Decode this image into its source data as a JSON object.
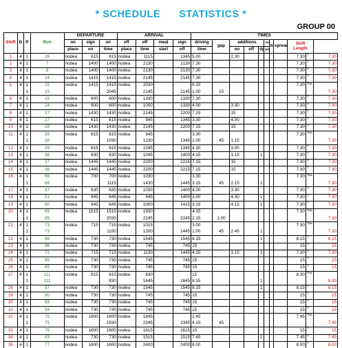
{
  "title": "* SCHEDULE      STATISTICS *",
  "group": "GROUP 00",
  "headers": {
    "shift": "Shift",
    "d": "D",
    "p": "P",
    "run": "Run",
    "departure": "DEPARTURE",
    "arrival": "ARRIVAL",
    "times": "TIMES",
    "on_place": [
      "on",
      "place"
    ],
    "sign_on": [
      "sign",
      "on"
    ],
    "on_time": [
      "on",
      "time"
    ],
    "off_place": [
      "off",
      "place"
    ],
    "off_time": [
      "off",
      "time"
    ],
    "meal_start": [
      "meal",
      "start"
    ],
    "sign_off": [
      "sign",
      "off"
    ],
    "driving_time": [
      "driving",
      "time"
    ],
    "gap": "gap",
    "additions": "additions",
    "add_on": "on",
    "add_off": "off",
    "dpt": "dpt",
    "ma": "mai",
    "pm": "pm",
    "brk": "brk.",
    "spread": "spread",
    "shift_length": [
      "Shift",
      "Length"
    ]
  },
  "rows": [
    {
      "shift": "1",
      "d": "4",
      "p": "1",
      "run": "26",
      "onp": "nodea",
      "son": "615",
      "ont": "615",
      "offp": "nodea",
      "offt": "1115",
      "meal": "",
      "soff": "1345",
      "drv": "5.00",
      "gap": "",
      "aon": "2.30",
      "aoff": "",
      "dpt": "",
      "ma": "",
      "pm": "",
      "brk": "",
      "spr": "7.30",
      "tag": "†",
      "len": "7.30"
    },
    {
      "shift": "2",
      "d": "4",
      "p": "1",
      "run": "7",
      "onp": "nodea",
      "son": "1400",
      "ont": "1400",
      "offp": "nodea",
      "offt": "2130",
      "meal": "",
      "soff": "2130",
      "drv": "7.30",
      "gap": "",
      "aon": "",
      "aoff": "",
      "dpt": "",
      "ma": "",
      "pm": "",
      "brk": "",
      "spr": "7.30",
      "tag": "†",
      "len": "7.30"
    },
    {
      "shift": "3",
      "d": "4",
      "p": "1",
      "run": "8",
      "onp": "nodea",
      "son": "1400",
      "ont": "1400",
      "offp": "nodea",
      "offt": "2130",
      "meal": "",
      "soff": "2130",
      "drv": "7.30",
      "gap": "",
      "aon": "",
      "aoff": "",
      "dpt": "",
      "ma": "",
      "pm": "",
      "brk": "",
      "spr": "7.30",
      "tag": "†",
      "len": "7.30"
    },
    {
      "shift": "4",
      "d": "4",
      "p": "1",
      "run": "14",
      "onp": "nodea",
      "son": "1415",
      "ont": "1415",
      "offp": "nodea",
      "offt": "2145",
      "meal": "",
      "soff": "2145",
      "drv": "7.30",
      "gap": "",
      "aon": "",
      "aoff": "",
      "dpt": "",
      "ma": "",
      "pm": "",
      "brk": "",
      "spr": "7.30",
      "tag": "†",
      "len": "7.30"
    },
    {
      "shift": "5",
      "d": "4",
      "p": "1",
      "run": "15",
      "onp": "nodea",
      "son": "1415",
      "ont": "1415",
      "offp": "nodea",
      "offt": "2030",
      "meal": "",
      "soff": "",
      "drv": "6.15",
      "gap": "",
      "aon": "",
      "aoff": "",
      "dpt": "",
      "ma": "",
      "pm": "",
      "brk": "",
      "spr": "7.30",
      "tag": "Tue",
      "len": ""
    },
    {
      "shift": "",
      "d": "",
      "p": "1",
      "run": "15",
      "onp": "",
      "son": "",
      "ont": "2045",
      "offp": "",
      "offt": "2145",
      "meal": "",
      "soff": "2145",
      "drv": "1.00",
      "gap": "15",
      "aon": "",
      "aoff": "",
      "dpt": "",
      "ma": "",
      "pm": "",
      "brk": "",
      "spr": "",
      "tag": "",
      "len": "7.30"
    },
    {
      "shift": "6",
      "d": "4",
      "p": "1",
      "run": "15",
      "onp": "nodea",
      "son": "600",
      "ont": "600",
      "offp": "nodea",
      "offt": "1330",
      "meal": "",
      "soff": "1330",
      "drv": "7.30",
      "gap": "",
      "aon": "",
      "aoff": "",
      "dpt": "",
      "ma": "",
      "pm": "",
      "brk": "",
      "spr": "7.30",
      "tag": "†",
      "len": "7.30"
    },
    {
      "shift": "7",
      "d": "4",
      "p": "1",
      "run": "14",
      "onp": "nodea",
      "son": "600",
      "ont": "600",
      "offp": "nodea",
      "offt": "1000",
      "meal": "",
      "soff": "1330",
      "drv": "4.00",
      "gap": "",
      "aon": "3.30",
      "aoff": "",
      "dpt": "",
      "ma": "",
      "pm": "",
      "brk": "",
      "spr": "7.30",
      "tag": "†",
      "len": "7.30"
    },
    {
      "shift": "8",
      "d": "4",
      "p": "1",
      "run": "27",
      "onp": "nodea",
      "son": "1430",
      "ont": "1430",
      "offp": "nodea",
      "offt": "2145",
      "meal": "",
      "soff": "2200",
      "drv": "7.15",
      "gap": "",
      "aon": "15",
      "aoff": "",
      "dpt": "",
      "ma": "",
      "pm": "",
      "brk": "",
      "spr": "7.30",
      "tag": "†",
      "len": "7.30"
    },
    {
      "shift": "9",
      "d": "4",
      "p": "1",
      "run": "27",
      "onp": "nodea",
      "son": "615",
      "ont": "615",
      "offp": "nodea",
      "offt": "945",
      "meal": "",
      "soff": "1345",
      "drv": "3.30",
      "gap": "",
      "aon": "4.00",
      "aoff": "",
      "dpt": "",
      "ma": "",
      "pm": "",
      "brk": "",
      "spr": "7.30",
      "tag": "†",
      "len": "7.30"
    },
    {
      "shift": "10",
      "d": "4",
      "p": "1",
      "run": "28",
      "onp": "nodea",
      "son": "1430",
      "ont": "1430",
      "offp": "nodea",
      "offt": "2145",
      "meal": "",
      "soff": "2200",
      "drv": "7.15",
      "gap": "",
      "aon": "15",
      "aoff": "",
      "dpt": "",
      "ma": "",
      "pm": "",
      "brk": "",
      "spr": "7.30",
      "tag": "†",
      "len": "7.30"
    },
    {
      "shift": "11",
      "d": "4",
      "p": "1",
      "run": "26",
      "onp": "nodea",
      "son": "615",
      "ont": "615",
      "offp": "nodea",
      "offt": "945",
      "meal": "",
      "soff": "",
      "drv": "3.30",
      "gap": "",
      "aon": "",
      "aoff": "",
      "dpt": "",
      "ma": "",
      "pm": "",
      "brk": "",
      "spr": "7.30",
      "tag": "Tue",
      "len": ""
    },
    {
      "shift": "",
      "d": "",
      "p": "1",
      "run": "26",
      "onp": "",
      "son": "",
      "ont": "1030",
      "offp": "",
      "offt": "1230",
      "meal": "",
      "soff": "1345",
      "drv": "2.00",
      "gap": "45",
      "aon": "1.15",
      "aoff": "",
      "dpt": "",
      "ma": "",
      "pm": "",
      "brk": "",
      "spr": "",
      "tag": "",
      "len": "7.30"
    },
    {
      "shift": "12",
      "d": "4",
      "p": "1",
      "run": "29",
      "onp": "nodea",
      "son": "615",
      "ont": "615",
      "offp": "nodea",
      "offt": "1045",
      "meal": "",
      "soff": "1345",
      "drv": "4.30",
      "gap": "",
      "aon": "3.00",
      "aoff": "",
      "dpt": "",
      "ma": "",
      "pm": "",
      "brk": "",
      "spr": "7.30",
      "tag": "†",
      "len": "7.30"
    },
    {
      "shift": "13",
      "d": "4",
      "p": "1",
      "run": "38",
      "onp": "nodea",
      "son": "630",
      "ont": "630",
      "offp": "nodea",
      "offt": "1045",
      "meal": "",
      "soff": "1400",
      "drv": "4.15",
      "gap": "",
      "aon": "3.15",
      "aoff": "",
      "dpt": "1",
      "ma": "",
      "pm": "",
      "brk": "",
      "spr": "7.30",
      "tag": "†",
      "len": "7.30"
    },
    {
      "shift": "14",
      "d": "4",
      "p": "1",
      "run": "37",
      "onp": "nodea",
      "son": "1445",
      "ont": "1445",
      "offp": "nodea",
      "offt": "2200",
      "meal": "",
      "soff": "2215",
      "drv": "7.15",
      "gap": "",
      "aon": "15",
      "aoff": "",
      "dpt": "",
      "ma": "",
      "pm": "",
      "brk": "",
      "spr": "7.30",
      "tag": "†",
      "len": "7.30"
    },
    {
      "shift": "15",
      "d": "4",
      "p": "1",
      "run": "38",
      "onp": "nodea",
      "son": "1445",
      "ont": "1445",
      "offp": "nodea",
      "offt": "2200",
      "meal": "",
      "soff": "2215",
      "drv": "7.15",
      "gap": "",
      "aon": "15",
      "aoff": "",
      "dpt": "",
      "ma": "",
      "pm": "",
      "brk": "",
      "spr": "7.30",
      "tag": "†",
      "len": "7.30"
    },
    {
      "shift": "16",
      "d": "4",
      "p": "1",
      "run": "66",
      "onp": "nodea",
      "son": "700",
      "ont": "700",
      "offp": "nodea",
      "offt": "1030",
      "meal": "",
      "soff": "",
      "drv": "3.30",
      "gap": "",
      "aon": "",
      "aoff": "",
      "dpt": "",
      "ma": "",
      "pm": "",
      "brk": "",
      "spr": "7.30",
      "tag": "Tue",
      "len": ""
    },
    {
      "shift": "",
      "d": "",
      "p": "1",
      "run": "66",
      "onp": "",
      "son": "",
      "ont": "1115",
      "offp": "",
      "offt": "1430",
      "meal": "",
      "soff": "1445",
      "drv": "3.15",
      "gap": "45",
      "aon": "2.15",
      "aoff": "",
      "dpt": "1",
      "ma": "",
      "pm": "",
      "brk": "",
      "spr": "",
      "tag": "",
      "len": "7.30"
    },
    {
      "shift": "17",
      "d": "4",
      "p": "1",
      "run": "37",
      "onp": "nodea",
      "son": "630",
      "ont": "630",
      "offp": "nodea",
      "offt": "1030",
      "meal": "",
      "soff": "1400",
      "drv": "4.00",
      "gap": "",
      "aon": "3.30",
      "aoff": "",
      "dpt": "",
      "ma": "",
      "pm": "",
      "brk": "",
      "spr": "7.30",
      "tag": "†",
      "len": "7.30"
    },
    {
      "shift": "18",
      "d": "4",
      "p": "1",
      "run": "51",
      "onp": "nodea",
      "son": "645",
      "ont": "645",
      "offp": "nodea",
      "offt": "945",
      "meal": "",
      "soff": "1400",
      "drv": "3.00",
      "gap": "",
      "aon": "4.30",
      "aoff": "",
      "dpt": "1",
      "ma": "",
      "pm": "",
      "brk": "",
      "spr": "7.30",
      "tag": "†",
      "len": "7.30"
    },
    {
      "shift": "19",
      "d": "4",
      "p": "1",
      "run": "50",
      "onp": "nodea",
      "son": "645",
      "ont": "645",
      "offp": "nodea",
      "offt": "1000",
      "meal": "",
      "soff": "1415",
      "drv": "3.15",
      "gap": "",
      "aon": "4.15",
      "aoff": "",
      "dpt": "1",
      "ma": "",
      "pm": "",
      "brk": "",
      "spr": "7.30",
      "tag": "†",
      "len": "7.30"
    },
    {
      "shift": "20",
      "d": "4",
      "p": "1",
      "run": "65",
      "onp": "nodea",
      "son": "1515",
      "ont": "1515",
      "offp": "nodea",
      "offt": "1930",
      "meal": "",
      "soff": "",
      "drv": "4.15",
      "gap": "",
      "aon": "",
      "aoff": "",
      "dpt": "",
      "ma": "",
      "pm": "",
      "brk": "",
      "spr": "7.30",
      "tag": "Tue",
      "len": ""
    },
    {
      "shift": "",
      "d": "",
      "p": "1",
      "run": "65",
      "onp": "",
      "son": "",
      "ont": "2030",
      "offp": "",
      "offt": "2245",
      "meal": "",
      "soff": "2245",
      "drv": "2.15",
      "gap": "1.00",
      "aon": "",
      "aoff": "",
      "dpt": "",
      "ma": "",
      "pm": "",
      "brk": "",
      "spr": "",
      "tag": "",
      "len": "7.30"
    },
    {
      "shift": "21",
      "d": "4",
      "p": "1",
      "run": "73",
      "onp": "nodea",
      "son": "715",
      "ont": "715",
      "offp": "nodea",
      "offt": "1015",
      "meal": "",
      "soff": "",
      "drv": "3.00",
      "gap": "",
      "aon": "",
      "aoff": "",
      "dpt": "",
      "ma": "",
      "pm": "",
      "brk": "",
      "spr": "7.30",
      "tag": "Tue",
      "len": ""
    },
    {
      "shift": "",
      "d": "",
      "p": "1",
      "run": "73",
      "onp": "",
      "son": "",
      "ont": "1100",
      "offp": "",
      "offt": "1200",
      "meal": "",
      "soff": "1445",
      "drv": "1.00",
      "gap": "45",
      "aon": "2.45",
      "aoff": "",
      "dpt": "1",
      "ma": "",
      "pm": "",
      "brk": "",
      "spr": "",
      "tag": "",
      "len": "7.30"
    },
    {
      "shift": "22",
      "d": "4",
      "p": "1",
      "run": "86",
      "onp": "nodea",
      "son": "730",
      "ont": "730",
      "offp": "nodea",
      "offt": "1545",
      "meal": "",
      "soff": "1545",
      "drv": "8.15",
      "gap": "",
      "aon": "",
      "aoff": "",
      "dpt": "1",
      "ma": "",
      "pm": "",
      "brk": "",
      "spr": "8.15",
      "tag": "†",
      "len": "8.15"
    },
    {
      "shift": "23",
      "d": "4",
      "p": "1",
      "run": "86",
      "onp": "nodea",
      "son": "730",
      "ont": "730",
      "offp": "nodea",
      "offt": "745",
      "meal": "",
      "soff": "745",
      "drv": "15",
      "gap": "",
      "aon": "",
      "aoff": "",
      "dpt": "",
      "ma": "",
      "pm": "",
      "brk": "",
      "spr": "15",
      "tag": "†",
      "len": "15"
    },
    {
      "shift": "24",
      "d": "4",
      "p": "1",
      "run": "72",
      "onp": "nodea",
      "son": "715",
      "ont": "715",
      "offp": "nodea",
      "offt": "1130",
      "meal": "",
      "soff": "1445",
      "drv": "4.15",
      "gap": "",
      "aon": "3.15",
      "aoff": "",
      "dpt": "1",
      "ma": "",
      "pm": "",
      "brk": "",
      "spr": "7.30",
      "tag": "†",
      "len": "7.30"
    },
    {
      "shift": "25",
      "d": "4",
      "p": "1",
      "run": "85",
      "onp": "nodea",
      "son": "730",
      "ont": "730",
      "offp": "nodea",
      "offt": "745",
      "meal": "",
      "soff": "745",
      "drv": "15",
      "gap": "",
      "aon": "",
      "aoff": "",
      "dpt": "",
      "ma": "",
      "pm": "",
      "brk": "",
      "spr": "15",
      "tag": "†",
      "len": "15"
    },
    {
      "shift": "26",
      "d": "4",
      "p": "1",
      "run": "85",
      "onp": "nodea",
      "son": "730",
      "ont": "730",
      "offp": "nodea",
      "offt": "745",
      "meal": "",
      "soff": "745",
      "drv": "15",
      "gap": "",
      "aon": "",
      "aoff": "",
      "dpt": "",
      "ma": "",
      "pm": "",
      "brk": "",
      "spr": "15",
      "tag": "†",
      "len": "15"
    },
    {
      "shift": "27",
      "d": "4",
      "p": "1",
      "run": "111",
      "onp": "nodea",
      "son": "815",
      "ont": "815",
      "offp": "nodea",
      "offt": "830",
      "meal": "",
      "soff": "",
      "drv": "15",
      "gap": "",
      "aon": "",
      "aoff": "",
      "dpt": "",
      "ma": "",
      "pm": "",
      "brk": "",
      "spr": "8.30",
      "tag": "Tue",
      "len": ""
    },
    {
      "shift": "",
      "d": "",
      "p": "1",
      "run": "111",
      "onp": "",
      "son": "",
      "ont": "830",
      "offp": "",
      "offt": "1645",
      "meal": "",
      "soff": "1645",
      "drv": "8.15",
      "gap": "",
      "aon": "",
      "aoff": "",
      "dpt": "1",
      "ma": "",
      "pm": "",
      "brk": "",
      "spr": "",
      "tag": "",
      "len": "8.30"
    },
    {
      "shift": "28",
      "d": "4",
      "p": "1",
      "run": "87",
      "onp": "nodea",
      "son": "730",
      "ont": "730",
      "offp": "nodea",
      "offt": "1545",
      "meal": "",
      "soff": "1545",
      "drv": "8.15",
      "gap": "",
      "aon": "",
      "aoff": "",
      "dpt": "1",
      "ma": "",
      "pm": "",
      "brk": "",
      "spr": "8.15",
      "tag": "†",
      "len": "8.15"
    },
    {
      "shift": "29",
      "d": "4",
      "p": "1",
      "run": "90",
      "onp": "nodea",
      "son": "730",
      "ont": "730",
      "offp": "nodea",
      "offt": "745",
      "meal": "",
      "soff": "745",
      "drv": "15",
      "gap": "",
      "aon": "",
      "aoff": "",
      "dpt": "",
      "ma": "",
      "pm": "",
      "brk": "",
      "spr": "15",
      "tag": "†",
      "len": "15"
    },
    {
      "shift": "30",
      "d": "4",
      "p": "1",
      "run": "93",
      "onp": "nodea",
      "son": "730",
      "ont": "730",
      "offp": "nodea",
      "offt": "745",
      "meal": "",
      "soff": "745",
      "drv": "15",
      "gap": "",
      "aon": "",
      "aoff": "",
      "dpt": "",
      "ma": "",
      "pm": "",
      "brk": "",
      "spr": "15",
      "tag": "†",
      "len": "15"
    },
    {
      "shift": "31",
      "d": "4",
      "p": "1",
      "run": "94",
      "onp": "nodea",
      "son": "730",
      "ont": "730",
      "offp": "nodea",
      "offt": "745",
      "meal": "",
      "soff": "745",
      "drv": "15",
      "gap": "",
      "aon": "",
      "aoff": "",
      "dpt": "",
      "ma": "",
      "pm": "",
      "brk": "",
      "spr": "15",
      "tag": "†",
      "len": "15"
    },
    {
      "shift": "32",
      "d": "4",
      "p": "1",
      "run": "75",
      "onp": "nodea",
      "son": "1600",
      "ont": "1600",
      "offp": "nodea",
      "offt": "1845",
      "meal": "",
      "soff": "",
      "drv": "2.45",
      "gap": "",
      "aon": "",
      "aoff": "",
      "dpt": "",
      "ma": "",
      "pm": "",
      "brk": "",
      "spr": "7.45",
      "tag": "Tue",
      "len": ""
    },
    {
      "shift": "",
      "d": "",
      "p": "1",
      "run": "75",
      "onp": "",
      "son": "",
      "ont": "1930",
      "offp": "",
      "offt": "2345",
      "meal": "",
      "soff": "2345",
      "drv": "4.15",
      "gap": "45",
      "aon": "",
      "aoff": "",
      "dpt": "",
      "ma": "",
      "pm": "",
      "brk": "",
      "spr": "",
      "tag": "",
      "len": "7.45"
    },
    {
      "shift": "33",
      "d": "4",
      "p": "1",
      "run": "76",
      "onp": "nodea",
      "son": "1600",
      "ont": "1600",
      "offp": "nodea",
      "offt": "1615",
      "meal": "",
      "soff": "1615",
      "drv": "15",
      "gap": "",
      "aon": "",
      "aoff": "",
      "dpt": "",
      "ma": "",
      "pm": "",
      "brk": "",
      "spr": "15",
      "tag": "†",
      "len": "15"
    },
    {
      "shift": "34",
      "d": "4",
      "p": "1",
      "run": "93",
      "onp": "nodea",
      "son": "730",
      "ont": "730",
      "offp": "nodea",
      "offt": "1515",
      "meal": "",
      "soff": "1515",
      "drv": "7.45",
      "gap": "",
      "aon": "",
      "aoff": "",
      "dpt": "1",
      "ma": "",
      "pm": "",
      "brk": "",
      "spr": "7.45",
      "tag": "†",
      "len": "7.45"
    },
    {
      "shift": "35",
      "d": "4",
      "p": "1",
      "run": "77",
      "onp": "nodea",
      "son": "1600",
      "ont": "1600",
      "offp": "nodea",
      "offt": "2400",
      "meal": "",
      "soff": "2400",
      "drv": "8.00",
      "gap": "",
      "aon": "",
      "aoff": "",
      "dpt": "",
      "ma": "",
      "pm": "",
      "brk": "",
      "spr": "8.00",
      "tag": "†",
      "len": "8.00"
    }
  ]
}
